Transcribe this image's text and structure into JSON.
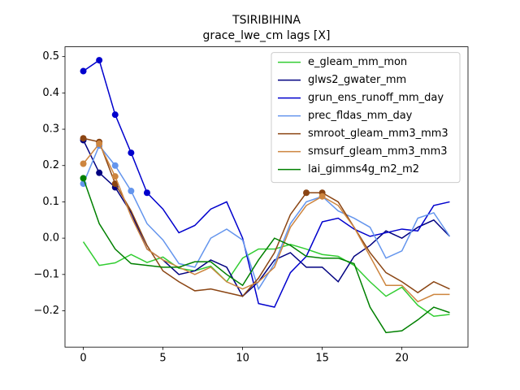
{
  "chart_data": {
    "type": "line",
    "title": "TSIRIBIHINA",
    "subtitle": "grace_lwe_cm lags [X]",
    "x": [
      0,
      1,
      2,
      3,
      4,
      5,
      6,
      7,
      8,
      9,
      10,
      11,
      12,
      13,
      14,
      15,
      16,
      17,
      18,
      19,
      20,
      21,
      22,
      23
    ],
    "xlim": [
      -1.15,
      24.15
    ],
    "xticks": [
      0,
      5,
      10,
      15,
      20
    ],
    "ylim": [
      -0.3,
      0.527
    ],
    "yticks": [
      {
        "value": -0.2,
        "label": "−0.2"
      },
      {
        "value": -0.1,
        "label": "−0.1"
      },
      {
        "value": 0,
        "label": "0.0"
      },
      0.1,
      0.2,
      0.3,
      0.4,
      0.5
    ],
    "grid": false,
    "legend": "upper right",
    "series": [
      {
        "name": "e_gleam_mm_mon",
        "color": "#32cd32",
        "markers": [],
        "values": [
          -0.01,
          -0.075,
          -0.068,
          -0.045,
          -0.067,
          -0.052,
          -0.083,
          -0.09,
          -0.077,
          -0.12,
          -0.055,
          -0.03,
          -0.03,
          -0.017,
          -0.03,
          -0.045,
          -0.05,
          -0.075,
          -0.12,
          -0.16,
          -0.135,
          -0.185,
          -0.215,
          -0.21
        ]
      },
      {
        "name": "glws2_gwater_mm",
        "color": "#000080",
        "markers": [
          0,
          1,
          2
        ],
        "values": [
          0.27,
          0.18,
          0.14,
          0.07,
          -0.03,
          -0.06,
          -0.1,
          -0.09,
          -0.06,
          -0.08,
          -0.16,
          -0.12,
          -0.06,
          -0.04,
          -0.08,
          -0.08,
          -0.12,
          -0.05,
          -0.02,
          0.02,
          0.0,
          0.03,
          0.05,
          0.005
        ]
      },
      {
        "name": "grun_ens_runoff_mm_day",
        "color": "#0000cd",
        "markers": [
          0,
          1,
          2,
          3,
          4
        ],
        "values": [
          0.46,
          0.49,
          0.34,
          0.235,
          0.125,
          0.08,
          0.015,
          0.035,
          0.08,
          0.1,
          0.0,
          -0.18,
          -0.19,
          -0.095,
          -0.05,
          0.045,
          0.055,
          0.025,
          0.005,
          0.015,
          0.025,
          0.02,
          0.09,
          0.1
        ]
      },
      {
        "name": "prec_fldas_mm_day",
        "color": "#6495ed",
        "markers": [
          0,
          1,
          2,
          3
        ],
        "values": [
          0.15,
          0.255,
          0.2,
          0.13,
          0.04,
          -0.005,
          -0.07,
          -0.08,
          0.0,
          0.025,
          -0.005,
          -0.14,
          -0.07,
          0.04,
          0.1,
          0.115,
          0.075,
          0.055,
          0.03,
          -0.055,
          -0.035,
          0.055,
          0.07,
          0.005
        ]
      },
      {
        "name": "smroot_gleam_mm3_mm3",
        "color": "#8b4513",
        "markers": [
          0,
          1,
          2,
          14,
          15
        ],
        "values": [
          0.275,
          0.265,
          0.15,
          0.075,
          -0.02,
          -0.09,
          -0.12,
          -0.145,
          -0.14,
          -0.15,
          -0.16,
          -0.11,
          -0.04,
          0.065,
          0.125,
          0.125,
          0.1,
          0.03,
          -0.04,
          -0.095,
          -0.12,
          -0.15,
          -0.12,
          -0.14
        ]
      },
      {
        "name": "smsurf_gleam_mm3_mm3",
        "color": "#cd853f",
        "markers": [
          0,
          1,
          2,
          15
        ],
        "values": [
          0.205,
          0.26,
          0.17,
          0.06,
          -0.03,
          -0.06,
          -0.08,
          -0.1,
          -0.08,
          -0.12,
          -0.14,
          -0.12,
          -0.08,
          0.03,
          0.09,
          0.115,
          0.09,
          0.03,
          -0.05,
          -0.13,
          -0.13,
          -0.175,
          -0.155,
          -0.155
        ]
      },
      {
        "name": "lai_gimms4g_m2_m2",
        "color": "#008000",
        "markers": [
          0
        ],
        "values": [
          0.165,
          0.04,
          -0.03,
          -0.07,
          -0.075,
          -0.08,
          -0.08,
          -0.065,
          -0.065,
          -0.1,
          -0.13,
          -0.06,
          0.0,
          -0.02,
          -0.05,
          -0.055,
          -0.055,
          -0.07,
          -0.19,
          -0.26,
          -0.255,
          -0.225,
          -0.19,
          -0.205
        ]
      }
    ]
  }
}
